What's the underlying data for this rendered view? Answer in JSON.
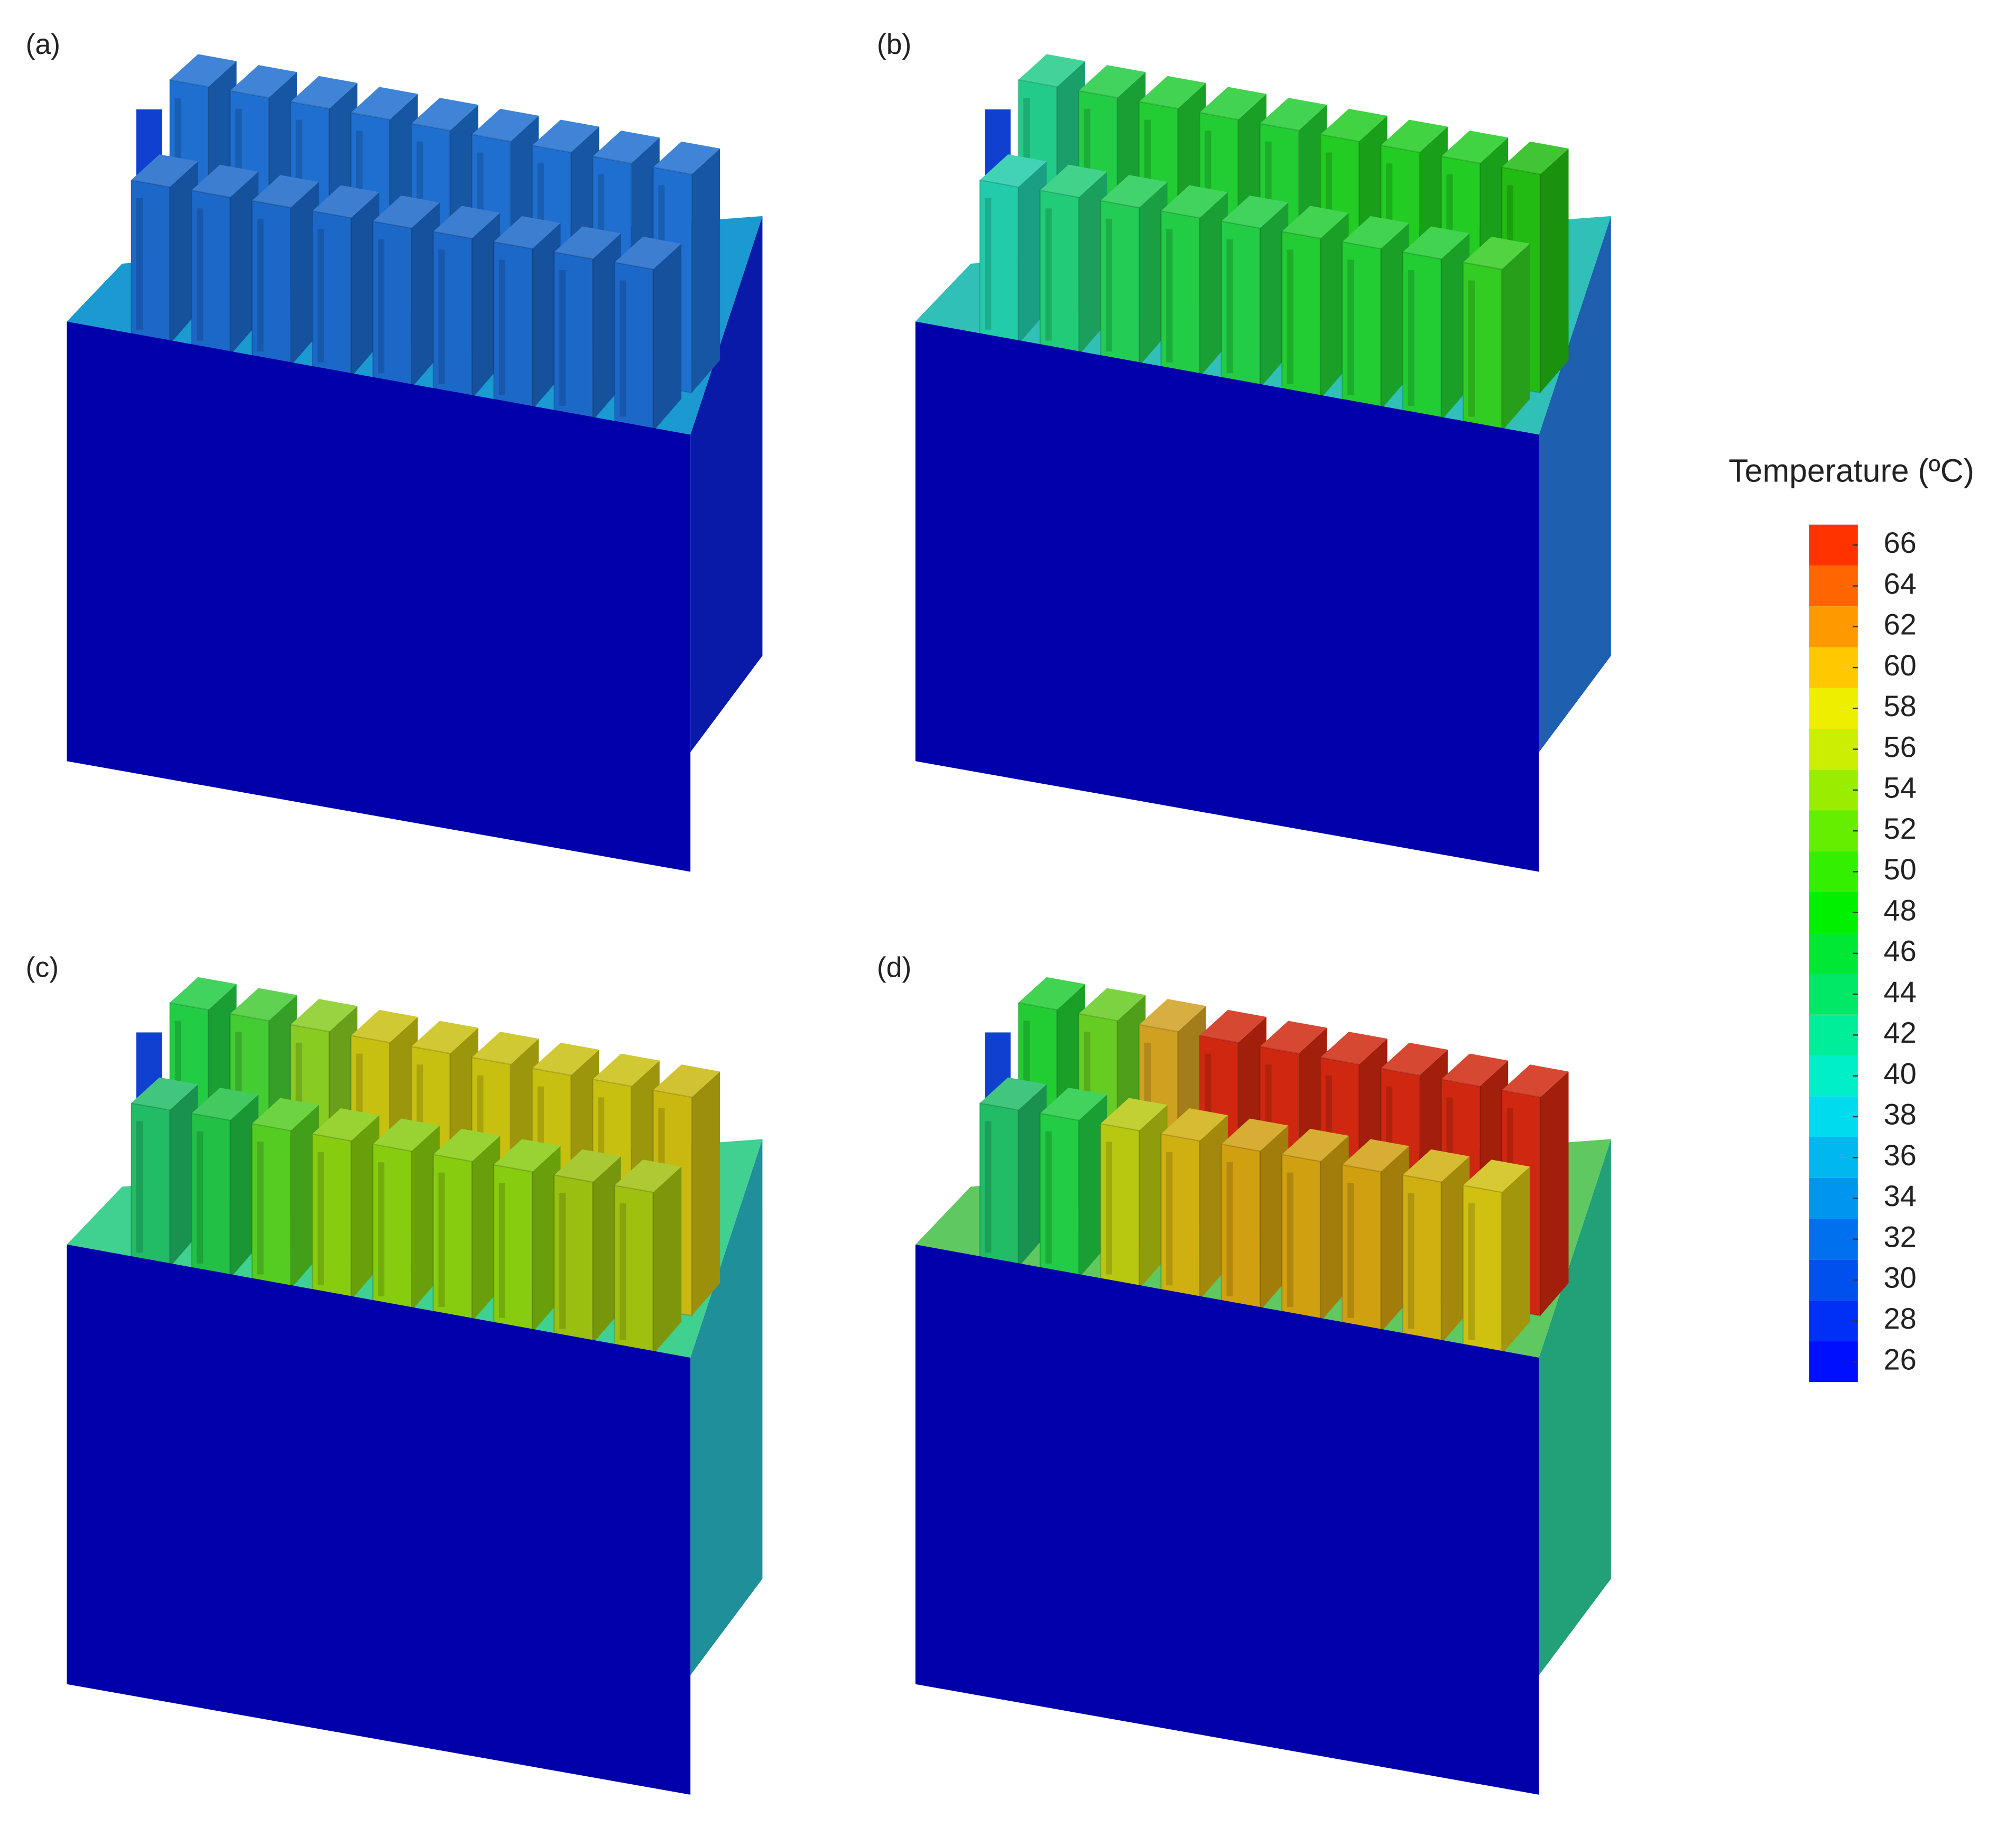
{
  "panels": [
    "(a)",
    "(b)",
    "(c)",
    "(d)"
  ],
  "colorbar": {
    "title": "Temperature (ºC)",
    "lim": [
      25,
      67
    ],
    "ticks": [
      26,
      28,
      30,
      32,
      34,
      36,
      38,
      40,
      42,
      44,
      46,
      48,
      50,
      52,
      54,
      56,
      58,
      60,
      62,
      64,
      66
    ],
    "colors": [
      "#0010ff",
      "#0030f5",
      "#0050ee",
      "#0070ee",
      "#0095ee",
      "#00b8ee",
      "#00dcee",
      "#00eec8",
      "#00ee99",
      "#00e866",
      "#00e833",
      "#00f000",
      "#33f000",
      "#66ee00",
      "#99ee00",
      "#ccee00",
      "#eeee00",
      "#ffc800",
      "#ff9900",
      "#ff6600",
      "#ff3300"
    ]
  }
}
